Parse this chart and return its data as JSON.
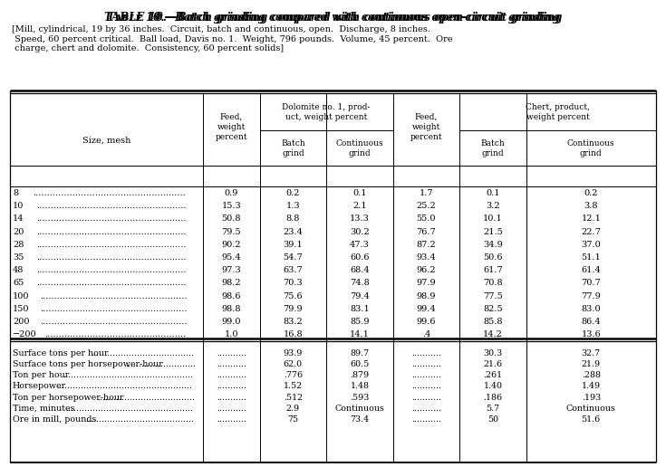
{
  "title_prefix": "Table 10.",
  "title_italic": "—Batch grinding compared with continuous open-circuit grinding",
  "subtitle": "[Mill, cylindrical, 19 by 36 inches.  Circuit, batch and continuous, open.  Discharge, 8 inches.\n Speed, 60 percent critical.  Ball load, Davis no. 1.  Weight, 796 pounds.  Volume, 45 percent.  Ore\n charge, chert and dolomite.  Consistency, 60 percent solids]",
  "data_rows": [
    [
      "8",
      "0.9",
      "0.2",
      "0.1",
      "1.7",
      "0.1",
      "0.2"
    ],
    [
      "10",
      "15.3",
      "1.3",
      "2.1",
      "25.2",
      "3.2",
      "3.8"
    ],
    [
      "14",
      "50.8",
      "8.8",
      "13.3",
      "55.0",
      "10.1",
      "12.1"
    ],
    [
      "20",
      "79.5",
      "23.4",
      "30.2",
      "76.7",
      "21.5",
      "22.7"
    ],
    [
      "28",
      "90.2",
      "39.1",
      "47.3",
      "87.2",
      "34.9",
      "37.0"
    ],
    [
      "35",
      "95.4",
      "54.7",
      "60.6",
      "93.4",
      "50.6",
      "51.1"
    ],
    [
      "48",
      "97.3",
      "63.7",
      "68.4",
      "96.2",
      "61.7",
      "61.4"
    ],
    [
      "65",
      "98.2",
      "70.3",
      "74.8",
      "97.9",
      "70.8",
      "70.7"
    ],
    [
      "100",
      "98.6",
      "75.6",
      "79.4",
      "98.9",
      "77.5",
      "77.9"
    ],
    [
      "150",
      "98.8",
      "79.9",
      "83.1",
      "99.4",
      "82.5",
      "83.0"
    ],
    [
      "200",
      "99.0",
      "83.2",
      "85.9",
      "99.6",
      "85.8",
      "86.4"
    ],
    [
      "−200",
      "1.0",
      "16.8",
      "14.1",
      ".4",
      "14.2",
      "13.6"
    ]
  ],
  "summary_rows": [
    [
      "Surface tons per hour",
      "...........",
      "93.9",
      "89.7",
      "...........",
      "30.3",
      "32.7"
    ],
    [
      "Surface tons per horsepower-hour",
      "...........",
      "62.0",
      "60.5",
      "...........",
      "21.6",
      "21.9"
    ],
    [
      "Ton per hour",
      "...........",
      ".776",
      ".879",
      "...........",
      ".261",
      ".288"
    ],
    [
      "Horsepower",
      "...........",
      "1.52",
      "1.48",
      "...........",
      "1.40",
      "1.49"
    ],
    [
      "Ton per horsepower-hour",
      "...........",
      ".512",
      ".593",
      "...........",
      ".186",
      ".193"
    ],
    [
      "Time, minutes",
      "...........",
      "2.9",
      "Continuous",
      "...........",
      "5.7",
      "Continuous"
    ],
    [
      "Ore in mill, pounds",
      "...........",
      "75",
      "73.4",
      "...........",
      "50",
      "51.6"
    ]
  ],
  "bg_color": "#ffffff",
  "text_color": "#000000"
}
